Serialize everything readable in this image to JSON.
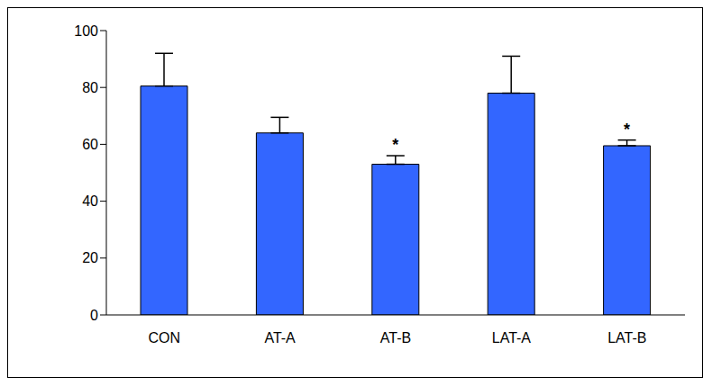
{
  "chart_data": {
    "type": "bar",
    "categories": [
      "CON",
      "AT-A",
      "AT-B",
      "LAT-A",
      "LAT-B"
    ],
    "values": [
      80.5,
      64,
      53,
      78,
      59.5
    ],
    "errors": [
      11.5,
      5.5,
      3,
      13,
      2
    ],
    "significance": [
      null,
      null,
      "*",
      null,
      "*"
    ],
    "color": "#3366ff",
    "ylim": [
      0,
      100
    ],
    "yticks": [
      0,
      20,
      40,
      60,
      80,
      100
    ],
    "grid": false
  }
}
